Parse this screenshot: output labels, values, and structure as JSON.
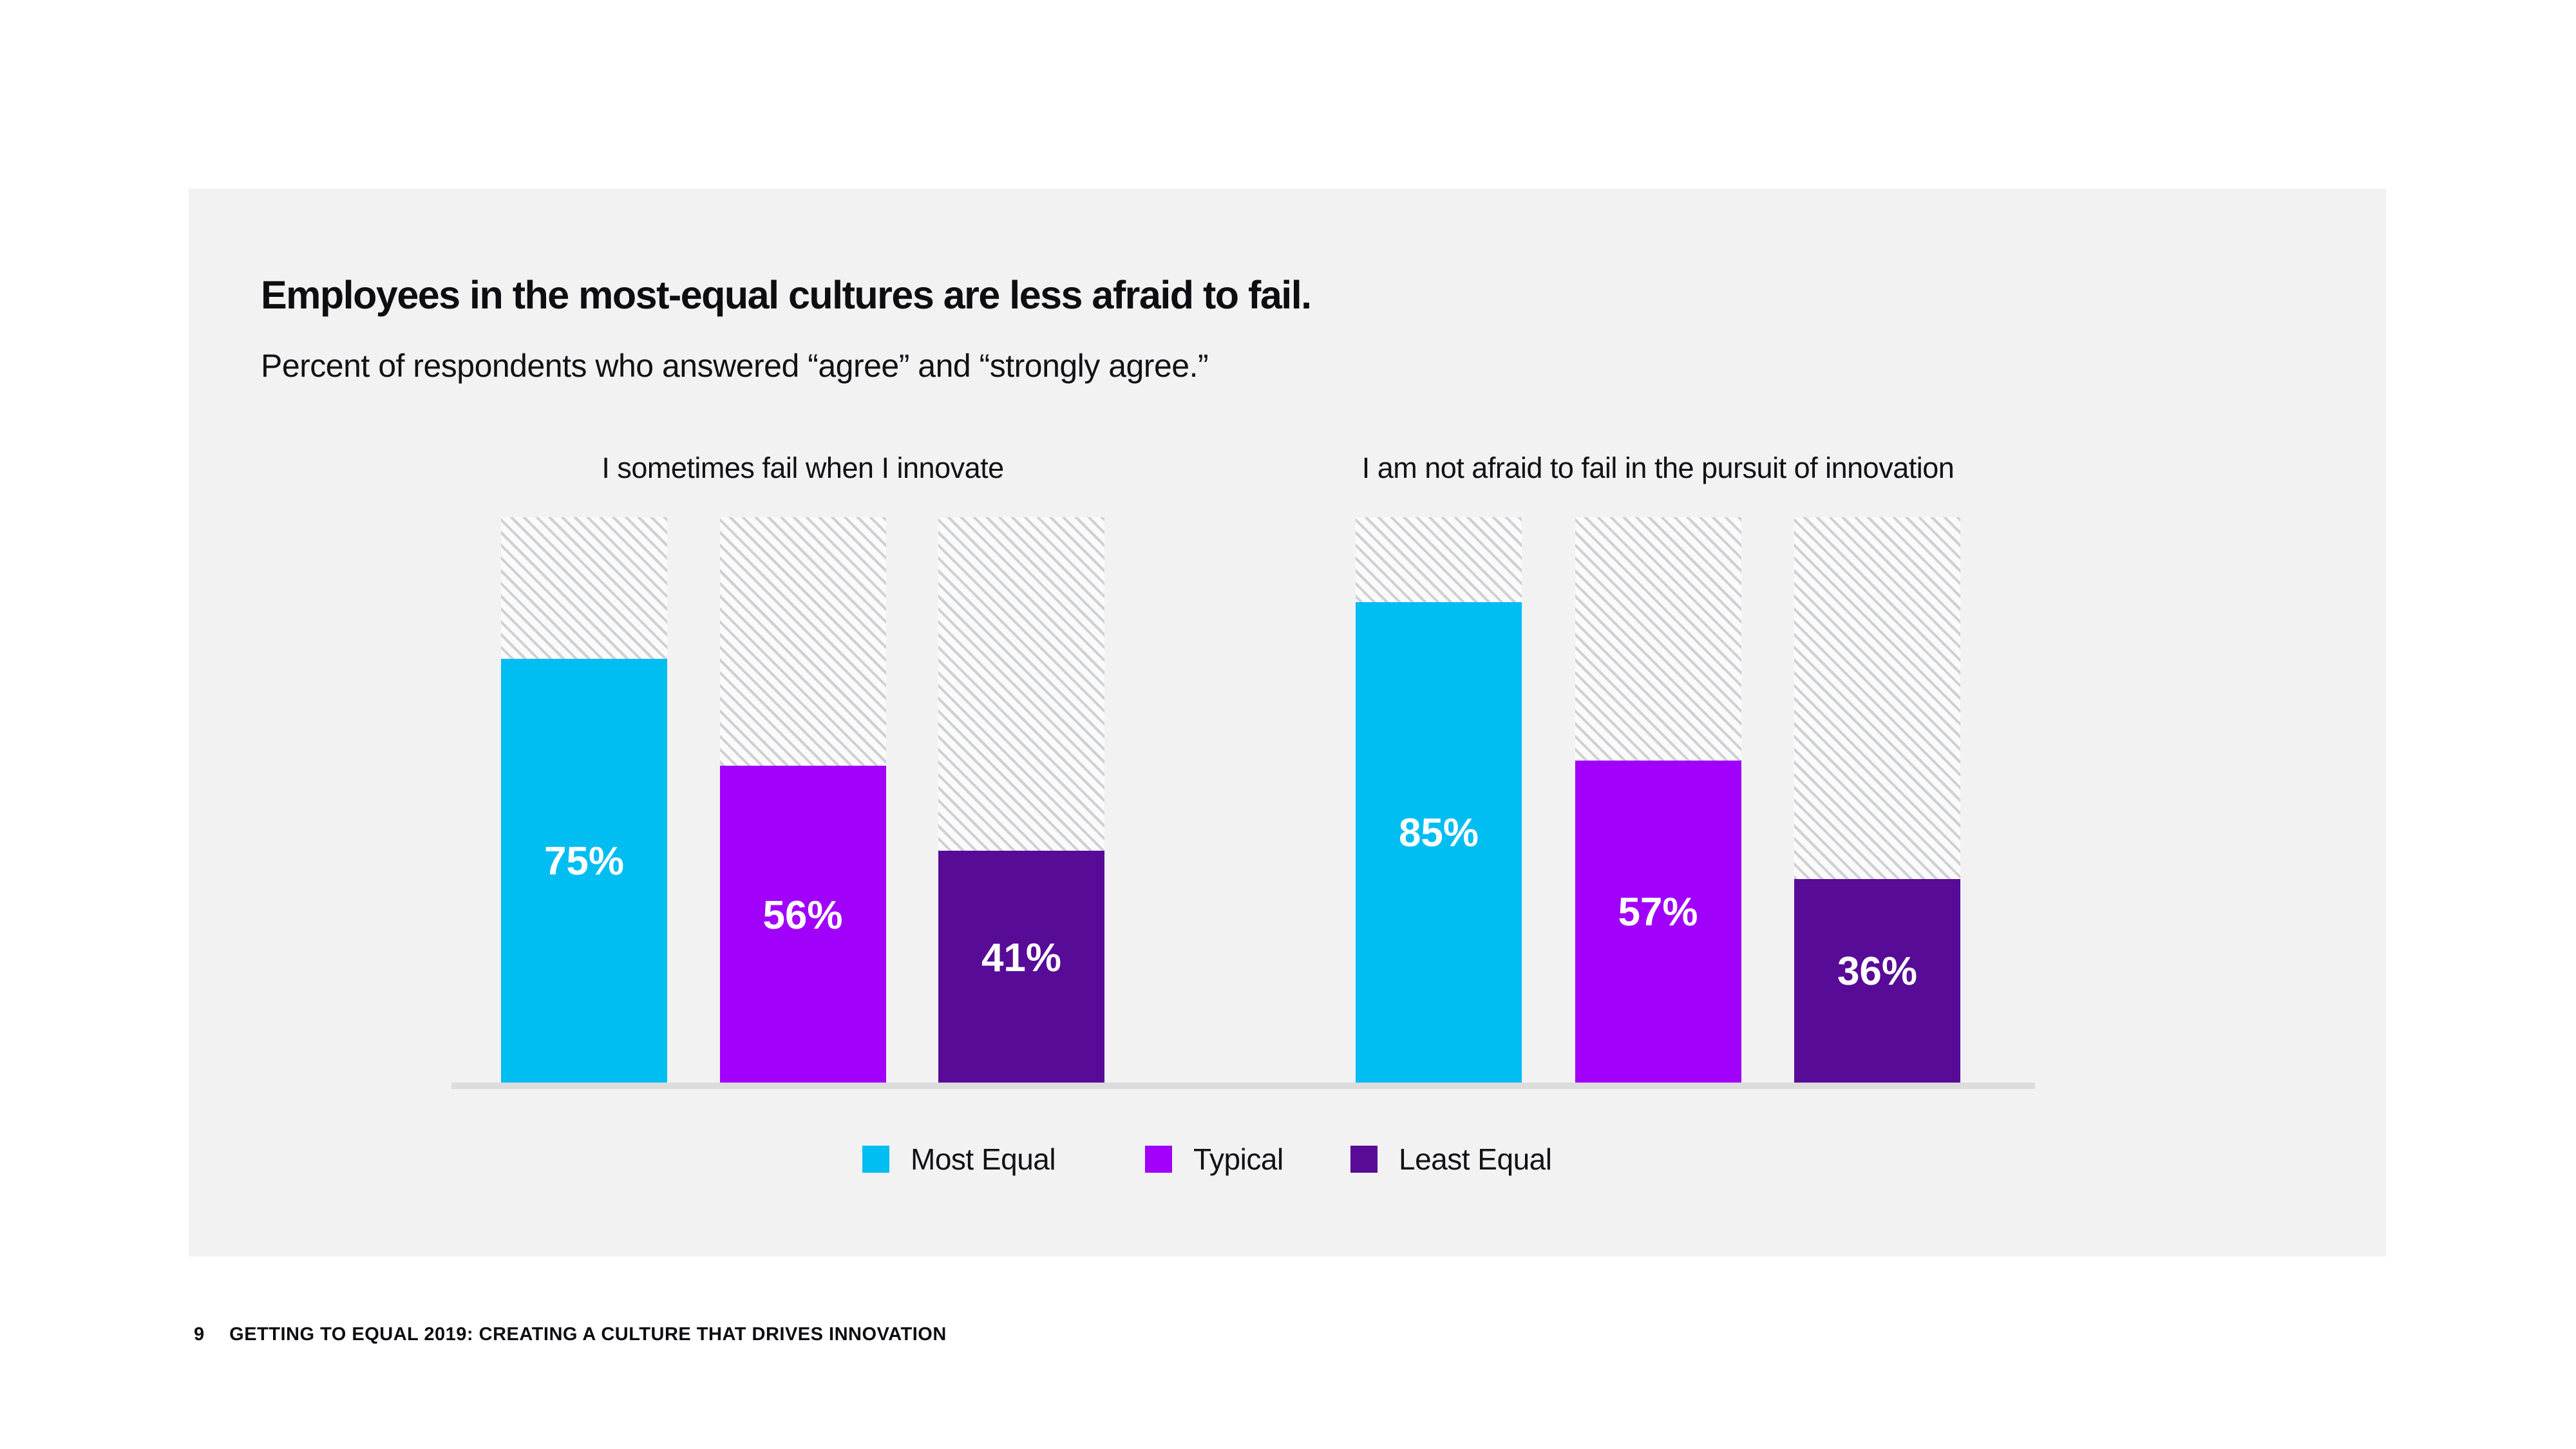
{
  "page": {
    "title": "Employees in the most-equal cultures are less afraid to fail.",
    "subtitle": "Percent of respondents who answered “agree” and “strongly agree.”",
    "footer": {
      "page_number": "9",
      "text": "GETTING TO EQUAL 2019: CREATING A CULTURE THAT DRIVES INNOVATION"
    }
  },
  "colors": {
    "most_equal": "#00bdf2",
    "typical": "#a100fa",
    "least_equal": "#570b96",
    "card_bg": "#f2f2f3",
    "baseline": "#dcdcdd",
    "hatch_line": "#cfd0d4",
    "hatch_bg": "#fafafa",
    "value_label": "#ffffff"
  },
  "legend": [
    {
      "label": "Most Equal",
      "color_key": "most_equal"
    },
    {
      "label": "Typical",
      "color_key": "typical"
    },
    {
      "label": "Least Equal",
      "color_key": "least_equal"
    }
  ],
  "chart_data": {
    "type": "bar",
    "title": "Employees in the most-equal cultures are less afraid to fail.",
    "subtitle": "Percent of respondents who answered “agree” and “strongly agree.”",
    "unit": "%",
    "ylim": [
      0,
      100
    ],
    "grid": false,
    "legend_position": "bottom",
    "legend_entries": [
      "Most Equal",
      "Typical",
      "Least Equal"
    ],
    "track_style": "diagonal-hatch-to-100%",
    "groups": [
      {
        "title": "I sometimes fail when I innovate",
        "bars": [
          {
            "category": "Most Equal",
            "color_key": "most_equal",
            "value": 75,
            "label": "75%"
          },
          {
            "category": "Typical",
            "color_key": "typical",
            "value": 56,
            "label": "56%"
          },
          {
            "category": "Least Equal",
            "color_key": "least_equal",
            "value": 41,
            "label": "41%"
          }
        ]
      },
      {
        "title": "I am not afraid to fail in the pursuit of innovation",
        "bars": [
          {
            "category": "Most Equal",
            "color_key": "most_equal",
            "value": 85,
            "label": "85%"
          },
          {
            "category": "Typical",
            "color_key": "typical",
            "value": 57,
            "label": "57%"
          },
          {
            "category": "Least Equal",
            "color_key": "least_equal",
            "value": 36,
            "label": "36%"
          }
        ]
      }
    ]
  }
}
